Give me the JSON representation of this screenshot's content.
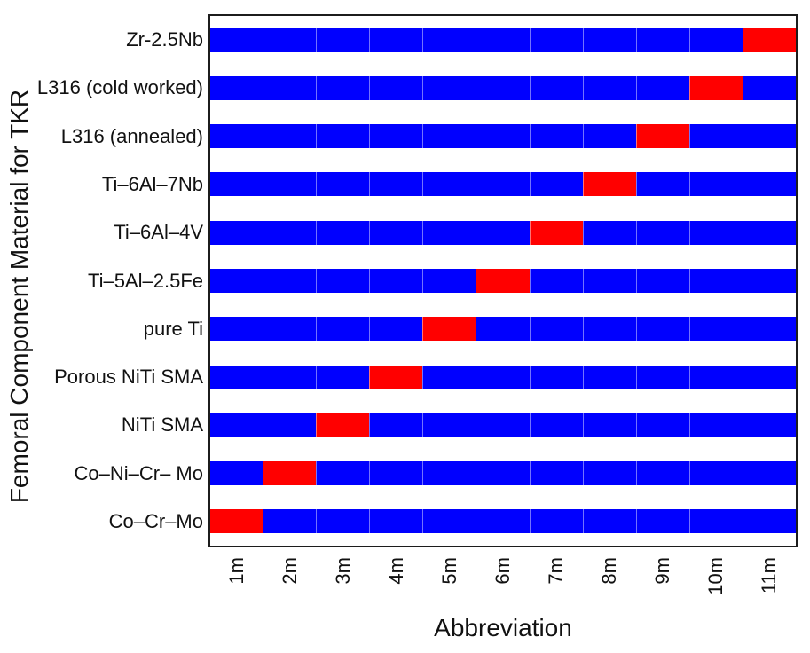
{
  "page": {
    "background": "#FFFFFF"
  },
  "chart_data": {
    "type": "heatmap",
    "title": "",
    "xlabel": "Abbreviation",
    "ylabel": "Femoral Component Material for TKR",
    "x_tick_labels": [
      "1m",
      "2m",
      "3m",
      "4m",
      "5m",
      "6m",
      "7m",
      "8m",
      "9m",
      "10m",
      "11m"
    ],
    "x_range": [
      0.5,
      11.5
    ],
    "row_order": "top_to_bottom",
    "rows": [
      {
        "label": "Zr-2.5Nb",
        "highlight_x": 11
      },
      {
        "label": "L316 (cold worked)",
        "highlight_x": 10
      },
      {
        "label": "L316 (annealed)",
        "highlight_x": 9
      },
      {
        "label": "Ti–6Al–7Nb",
        "highlight_x": 8
      },
      {
        "label": "Ti–6Al–4V",
        "highlight_x": 7
      },
      {
        "label": "Ti–5Al–2.5Fe",
        "highlight_x": 6
      },
      {
        "label": "pure Ti",
        "highlight_x": 5
      },
      {
        "label": "Porous NiTi SMA",
        "highlight_x": 4
      },
      {
        "label": "NiTi SMA",
        "highlight_x": 3
      },
      {
        "label": "Co–Ni–Cr– Mo",
        "highlight_x": 2
      },
      {
        "label": "Co–Cr–Mo",
        "highlight_x": 1
      }
    ],
    "cell_width_units": 1,
    "colors": {
      "base_cell": "#0000FF",
      "highlight_cell": "#FF0000",
      "cell_divider": "rgba(255,255,255,0.45)",
      "panel_border": "#1C1C1C",
      "text": "#111111"
    },
    "legend": "none",
    "grid": "off"
  }
}
